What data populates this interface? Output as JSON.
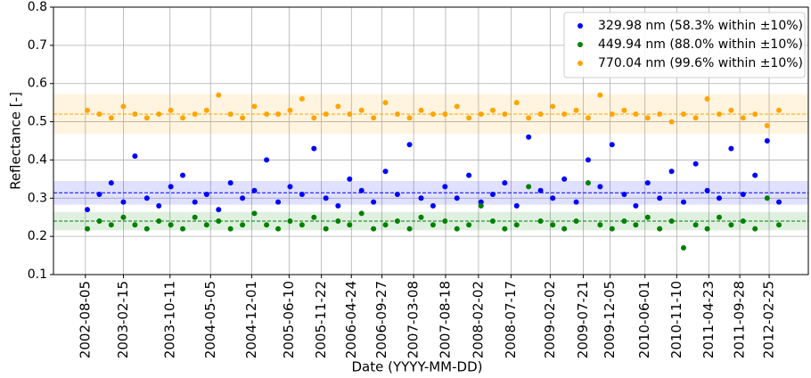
{
  "chart_data": {
    "type": "scatter",
    "x_label": "Date (YYYY-MM-DD)",
    "y_label": "Reflectance [-]",
    "x": [
      "2002-08-15",
      "2002-10-15",
      "2002-12-15",
      "2003-02-15",
      "2003-04-15",
      "2003-06-15",
      "2003-08-15",
      "2003-10-15",
      "2003-12-15",
      "2004-02-15",
      "2004-04-15",
      "2004-06-15",
      "2004-08-15",
      "2004-10-15",
      "2004-12-15",
      "2005-02-15",
      "2005-04-15",
      "2005-06-15",
      "2005-08-15",
      "2005-10-15",
      "2005-12-15",
      "2006-02-15",
      "2006-04-15",
      "2006-06-15",
      "2006-08-15",
      "2006-10-15",
      "2006-12-15",
      "2007-02-15",
      "2007-04-15",
      "2007-06-15",
      "2007-08-15",
      "2007-10-15",
      "2007-12-15",
      "2008-02-15",
      "2008-04-15",
      "2008-06-15",
      "2008-08-15",
      "2008-10-15",
      "2008-12-15",
      "2009-02-15",
      "2009-04-15",
      "2009-06-15",
      "2009-08-15",
      "2009-10-15",
      "2009-12-15",
      "2010-02-15",
      "2010-04-15",
      "2010-06-15",
      "2010-08-15",
      "2010-10-15",
      "2010-12-15",
      "2011-02-15",
      "2011-04-15",
      "2011-06-15",
      "2011-08-15",
      "2011-10-15",
      "2011-12-15",
      "2012-02-15",
      "2012-04-15"
    ],
    "series": [
      {
        "name": "329.98 nm (58.3% within ±10%)",
        "color": "#0000ff",
        "mean": 0.314,
        "band": [
          0.283,
          0.345
        ],
        "values": [
          0.27,
          0.31,
          0.34,
          0.29,
          0.41,
          0.3,
          0.28,
          0.33,
          0.36,
          0.29,
          0.31,
          0.27,
          0.34,
          0.3,
          0.32,
          0.4,
          0.29,
          0.33,
          0.31,
          0.43,
          0.3,
          0.28,
          0.35,
          0.32,
          0.29,
          0.37,
          0.31,
          0.44,
          0.3,
          0.28,
          0.33,
          0.3,
          0.36,
          0.29,
          0.31,
          0.34,
          0.28,
          0.46,
          0.32,
          0.3,
          0.35,
          0.29,
          0.4,
          0.33,
          0.44,
          0.31,
          0.28,
          0.34,
          0.3,
          0.37,
          0.29,
          0.39,
          0.32,
          0.3,
          0.43,
          0.31,
          0.36,
          0.45,
          0.29
        ]
      },
      {
        "name": "449.94 nm (88.0% within ±10%)",
        "color": "#008000",
        "mean": 0.24,
        "band": [
          0.216,
          0.264
        ],
        "values": [
          0.22,
          0.24,
          0.23,
          0.25,
          0.23,
          0.22,
          0.24,
          0.23,
          0.22,
          0.25,
          0.23,
          0.24,
          0.22,
          0.23,
          0.26,
          0.23,
          0.22,
          0.24,
          0.23,
          0.25,
          0.22,
          0.24,
          0.23,
          0.26,
          0.22,
          0.23,
          0.24,
          0.22,
          0.25,
          0.23,
          0.24,
          0.22,
          0.23,
          0.28,
          0.24,
          0.22,
          0.23,
          0.33,
          0.24,
          0.23,
          0.22,
          0.24,
          0.34,
          0.23,
          0.22,
          0.24,
          0.23,
          0.25,
          0.22,
          0.24,
          0.17,
          0.23,
          0.22,
          0.25,
          0.23,
          0.24,
          0.22,
          0.3,
          0.23
        ]
      },
      {
        "name": "770.04 nm (99.6% within ±10%)",
        "color": "#ffa500",
        "mean": 0.52,
        "band": [
          0.468,
          0.572
        ],
        "values": [
          0.53,
          0.52,
          0.51,
          0.54,
          0.52,
          0.51,
          0.52,
          0.53,
          0.51,
          0.52,
          0.53,
          0.57,
          0.52,
          0.51,
          0.54,
          0.52,
          0.52,
          0.53,
          0.56,
          0.51,
          0.52,
          0.54,
          0.52,
          0.53,
          0.51,
          0.55,
          0.52,
          0.51,
          0.53,
          0.52,
          0.52,
          0.54,
          0.51,
          0.52,
          0.53,
          0.52,
          0.55,
          0.51,
          0.52,
          0.54,
          0.52,
          0.53,
          0.51,
          0.57,
          0.52,
          0.53,
          0.52,
          0.51,
          0.52,
          0.5,
          0.52,
          0.51,
          0.56,
          0.52,
          0.53,
          0.51,
          0.52,
          0.49,
          0.53
        ]
      }
    ],
    "xlim": [
      "2002-02-23",
      "2012-09-12"
    ],
    "xticks": [
      "2002-08-05",
      "2003-02-15",
      "2003-10-11",
      "2004-05-05",
      "2004-12-01",
      "2005-06-10",
      "2005-11-22",
      "2006-04-24",
      "2006-09-27",
      "2007-03-08",
      "2007-08-18",
      "2008-02-02",
      "2008-07-17",
      "2009-02-02",
      "2009-07-21",
      "2009-12-05",
      "2010-06-01",
      "2010-11-10",
      "2011-04-23",
      "2011-09-28",
      "2012-02-25"
    ],
    "ylim": [
      0.1,
      0.8
    ],
    "yticks": [
      0.1,
      0.2,
      0.3,
      0.4,
      0.5,
      0.6,
      0.7,
      0.8
    ],
    "grid": true,
    "legend": "upper right"
  }
}
